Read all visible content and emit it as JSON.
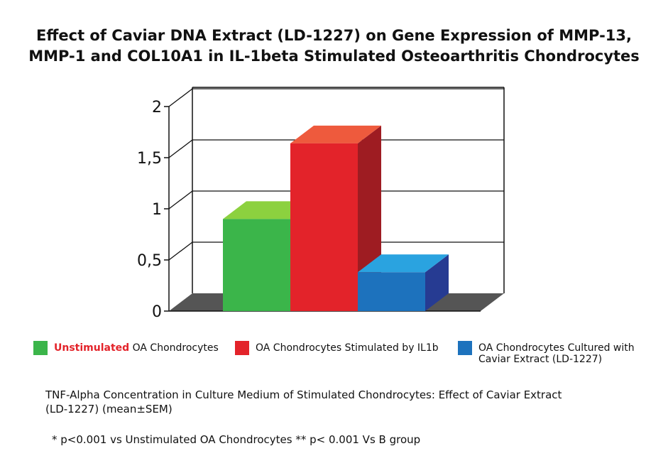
{
  "chart_data": {
    "type": "bar",
    "title_lines": [
      "Effect of Caviar DNA Extract (LD-1227) on Gene Expression of MMP-13,",
      "MMP-1 and COL10A1 in IL-1beta Stimulated Osteoarthritis Chondrocytes"
    ],
    "xlabel": "",
    "ylabel": "",
    "ylim": [
      0,
      2
    ],
    "yticks": [
      "0",
      "0,5",
      "1",
      "1,5",
      "2"
    ],
    "ytick_values": [
      0,
      0.5,
      1,
      1.5,
      2
    ],
    "grid": true,
    "legend_position": "bottom",
    "series": [
      {
        "name": "Unstimulated OA Chondrocytes",
        "value": 0.9,
        "color": "#3bb54a",
        "top_color": "#8cd13f"
      },
      {
        "name": "OA Chondrocytes Stimulated by IL1b",
        "value": 1.64,
        "color": "#e3232a",
        "top_color": "#ee5a3d",
        "side_color": "#9e1c22"
      },
      {
        "name": "OA Chondrocytes Cultured with Caviar Extract (LD-1227)",
        "value": 0.38,
        "color": "#1d72bd",
        "top_color": "#2aa3e0",
        "side_color": "#263b92"
      }
    ]
  },
  "legend": {
    "item1_highlight": "Unstimulated",
    "item1_rest": " OA Chondrocytes",
    "item2": "OA Chondrocytes Stimulated by IL1b",
    "item3_line1": "OA Chondrocytes Cultured with",
    "item3_line2": "Caviar Extract (LD-1227)"
  },
  "notes": {
    "caption_line1": "TNF-Alpha Concentration in Culture Medium of Stimulated Chondrocytes: Effect of Caviar Extract",
    "caption_line2": "(LD-1227) (mean±SEM)",
    "footnote": "* p<0.001 vs Unstimulated OA Chondrocytes ** p< 0.001 Vs B group"
  }
}
